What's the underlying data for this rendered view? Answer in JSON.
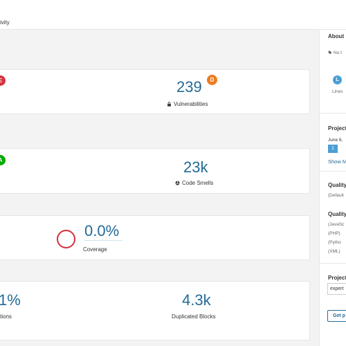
{
  "topbar": {
    "tab_activity": "ivity"
  },
  "cards": {
    "security": {
      "left_rating": "E",
      "value": "239",
      "rating": "D",
      "label": "Vulnerabilities",
      "icon": "lock-icon"
    },
    "maintainability": {
      "left_rating": "A",
      "value": "23k",
      "label": "Code Smells",
      "icon": "code-smell-icon"
    },
    "coverage": {
      "value": "0.0%",
      "label": "Coverage"
    },
    "duplications": {
      "left_value": "1%",
      "left_label": "tions",
      "value": "4.3k",
      "label": "Duplicated Blocks"
    }
  },
  "sidebar": {
    "about_title": "About",
    "no_tags": "No t",
    "lines_badge": "L",
    "lines_label": "Lines",
    "project_activity_title": "Project",
    "activity_date": "June 6,",
    "activity_badge": "1",
    "show_more": "Show M",
    "quality_gate_title": "Quality",
    "quality_gate_value": "(Default",
    "quality_profiles_title": "Quality",
    "profile_1": "(JavaSc",
    "profile_2": "(PHP)",
    "profile_3": "(Pytho",
    "profile_4": "(XML)",
    "project_key_title": "Project",
    "project_key_value": "expert",
    "get_button": "Get p"
  },
  "colors": {
    "rating_E": "#d4333f",
    "rating_D": "#ed7d20",
    "rating_A": "#00aa00",
    "rating_L": "#4b9fd5",
    "accent": "#236a97"
  }
}
